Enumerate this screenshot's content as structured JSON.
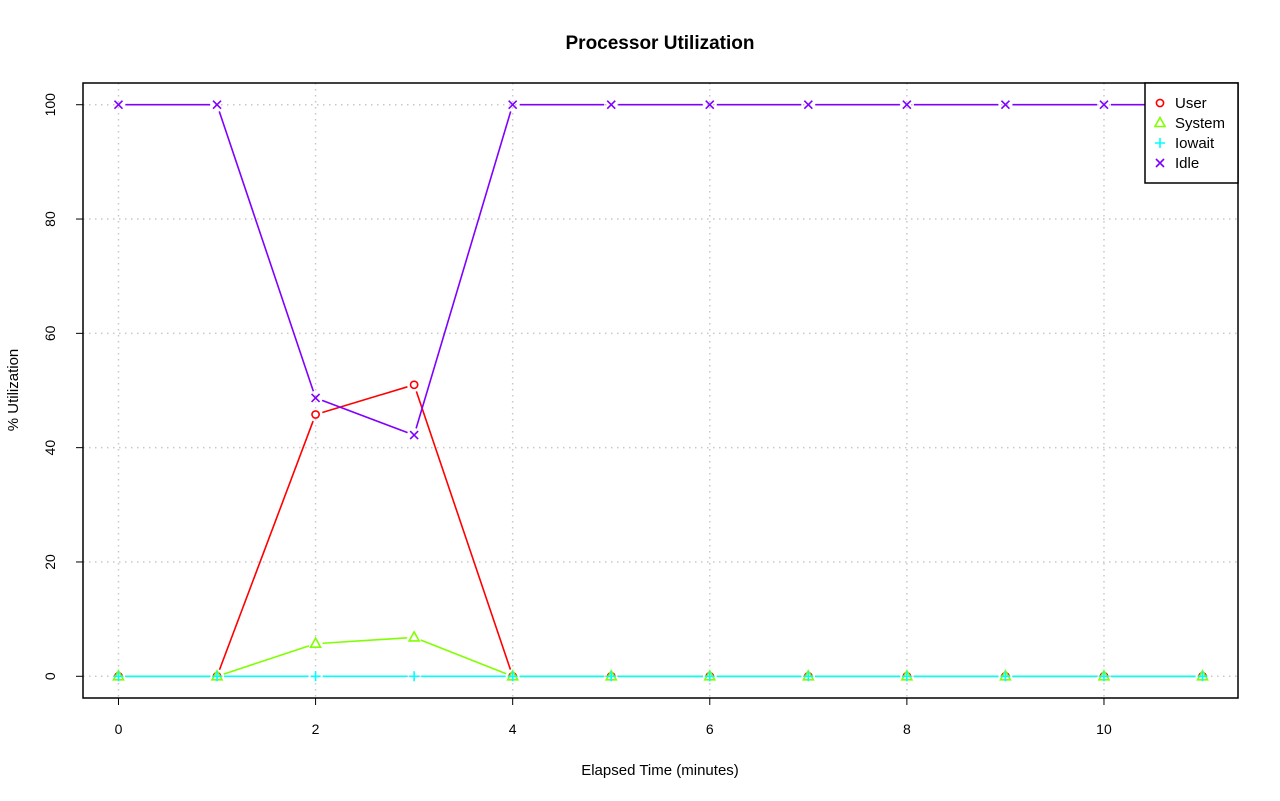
{
  "chart_data": {
    "type": "line",
    "title": "Processor Utilization",
    "xlabel": "Elapsed Time (minutes)",
    "ylabel": "% Utilization",
    "x": [
      0,
      1,
      2,
      3,
      4,
      5,
      6,
      7,
      8,
      9,
      10,
      11
    ],
    "xlim": [
      -0.36,
      11.36
    ],
    "ylim": [
      -3.8,
      103.8
    ],
    "xticks": [
      0,
      2,
      4,
      6,
      8,
      10
    ],
    "yticks": [
      0,
      20,
      40,
      60,
      80,
      100
    ],
    "grid": true,
    "legend_position": "top-right",
    "series": [
      {
        "name": "User",
        "color": "#ff0000",
        "marker": "circle",
        "values": [
          0,
          0,
          45.8,
          51,
          0,
          0,
          0,
          0,
          0,
          0,
          0,
          0
        ]
      },
      {
        "name": "System",
        "color": "#80ff00",
        "marker": "triangle",
        "values": [
          0,
          0,
          5.7,
          6.8,
          0,
          0,
          0,
          0,
          0,
          0,
          0,
          0
        ]
      },
      {
        "name": "Iowait",
        "color": "#00ffff",
        "marker": "plus",
        "values": [
          0,
          0,
          0,
          0,
          0,
          0,
          0,
          0,
          0,
          0,
          0,
          0
        ]
      },
      {
        "name": "Idle",
        "color": "#8000ff",
        "marker": "cross",
        "values": [
          100,
          100,
          48.7,
          42.2,
          100,
          100,
          100,
          100,
          100,
          100,
          100,
          100
        ]
      }
    ]
  }
}
